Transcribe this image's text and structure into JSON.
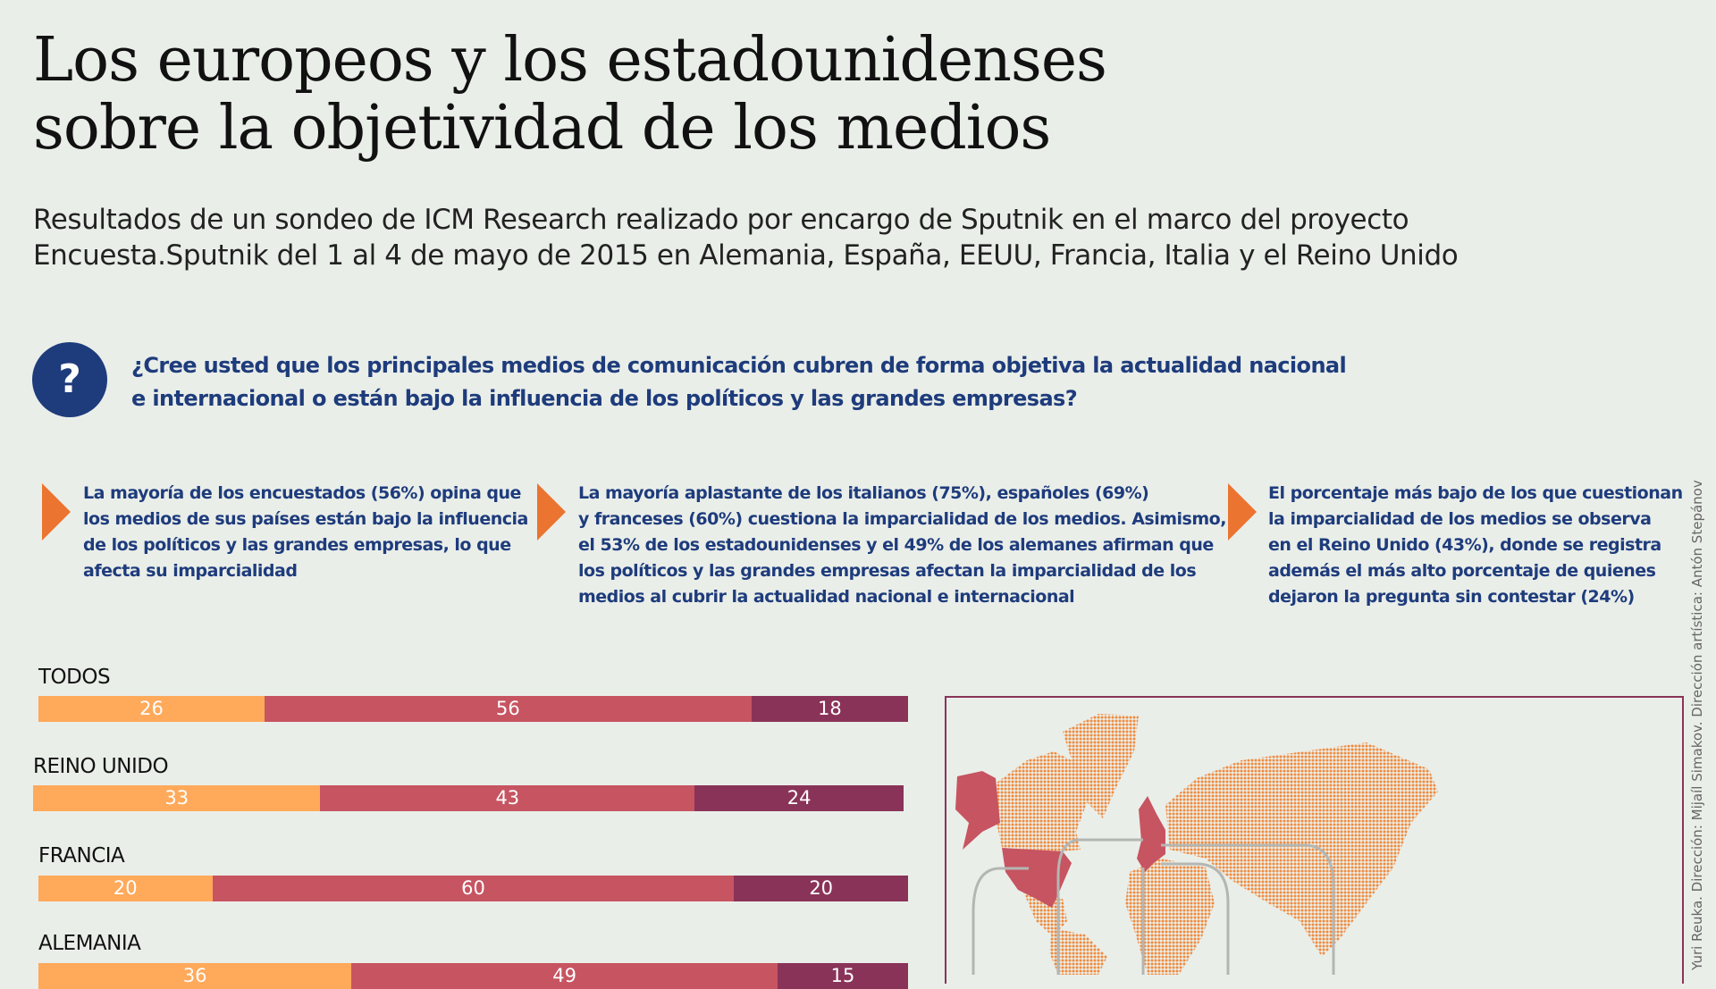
{
  "header": {
    "title_line1": "Los europeos y los estadounidenses",
    "title_line2": "sobre la objetividad de los medios",
    "subtitle_line1": "Resultados de un sondeo de ICM Research realizado por encargo de Sputnik en el marco del proyecto",
    "subtitle_line2": "Encuesta.Sputnik del 1 al 4 de mayo de 2015 en Alemania, España, EEUU, Francia, Italia y el Reino Unido"
  },
  "question": {
    "icon": "question-mark-icon",
    "icon_text": "?",
    "line1": "¿Cree usted que los principales medios de comunicación cubren de forma objetiva la actualidad nacional",
    "line2": "e internacional o están bajo la influencia de los políticos y las grandes empresas?"
  },
  "findings": [
    {
      "lines": [
        "La mayoría de los encuestados (56%) opina que",
        "los medios de sus países están bajo la influencia",
        "de los políticos y las grandes empresas, lo que",
        "afecta su imparcialidad"
      ]
    },
    {
      "lines": [
        "La mayoría aplastante de los italianos (75%), españoles (69%)",
        "y franceses (60%) cuestiona la imparcialidad de los medios. Asimismo,",
        "el 53% de los estadounidenses y el 49% de los alemanes afirman que",
        "los políticos y las grandes empresas afectan la imparcialidad de los",
        "medios al cubrir la actualidad nacional e internacional"
      ]
    },
    {
      "lines": [
        "El porcentaje más bajo de los que cuestionan",
        "la imparcialidad de los medios se observa",
        "en el Reino Unido (43%), donde se registra",
        "además el más alto porcentaje de quienes",
        "dejaron la pregunta sin contestar (24%)"
      ]
    }
  ],
  "colors": {
    "segment1": "#ffa95a",
    "segment2": "#c75461",
    "segment3": "#8a3358",
    "accent_arrow": "#ea7430",
    "question_blue": "#1e3c7c",
    "map_land": "#f08a3e",
    "map_highlight": "#c75461"
  },
  "chart_data": {
    "type": "bar",
    "stacked": true,
    "orientation": "horizontal",
    "categories": [
      "TODOS",
      "REINO UNIDO",
      "FRANCIA",
      "ALEMANIA"
    ],
    "series": [
      {
        "values": [
          26,
          33,
          20,
          36
        ]
      },
      {
        "values": [
          56,
          43,
          60,
          49
        ]
      },
      {
        "values": [
          18,
          24,
          20,
          15
        ]
      }
    ]
  },
  "credit": "Yuri Reuka. Dirección: Mijaíl Simakov. Dirección artística: Antón Stepánov"
}
